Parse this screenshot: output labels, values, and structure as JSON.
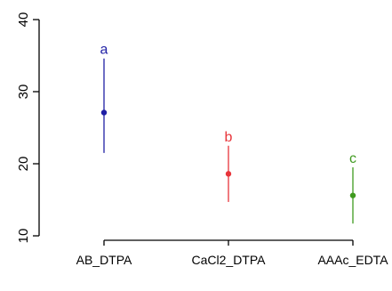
{
  "chart_data": {
    "type": "scatter",
    "categories": [
      "AB_DTPA",
      "CaCl2_DTPA",
      "AAAc_EDTA"
    ],
    "means": [
      27.1,
      18.6,
      15.6
    ],
    "lower": [
      21.5,
      14.7,
      11.7
    ],
    "upper": [
      34.6,
      22.5,
      19.5
    ],
    "group_labels": [
      "a",
      "b",
      "c"
    ],
    "colors": [
      "#1f1fa5",
      "#e8343a",
      "#3f9a1f"
    ],
    "ylim": [
      10,
      40
    ],
    "yticks": [
      10,
      20,
      30,
      40
    ],
    "title": "",
    "xlabel": "",
    "ylabel": "",
    "grid": false
  }
}
